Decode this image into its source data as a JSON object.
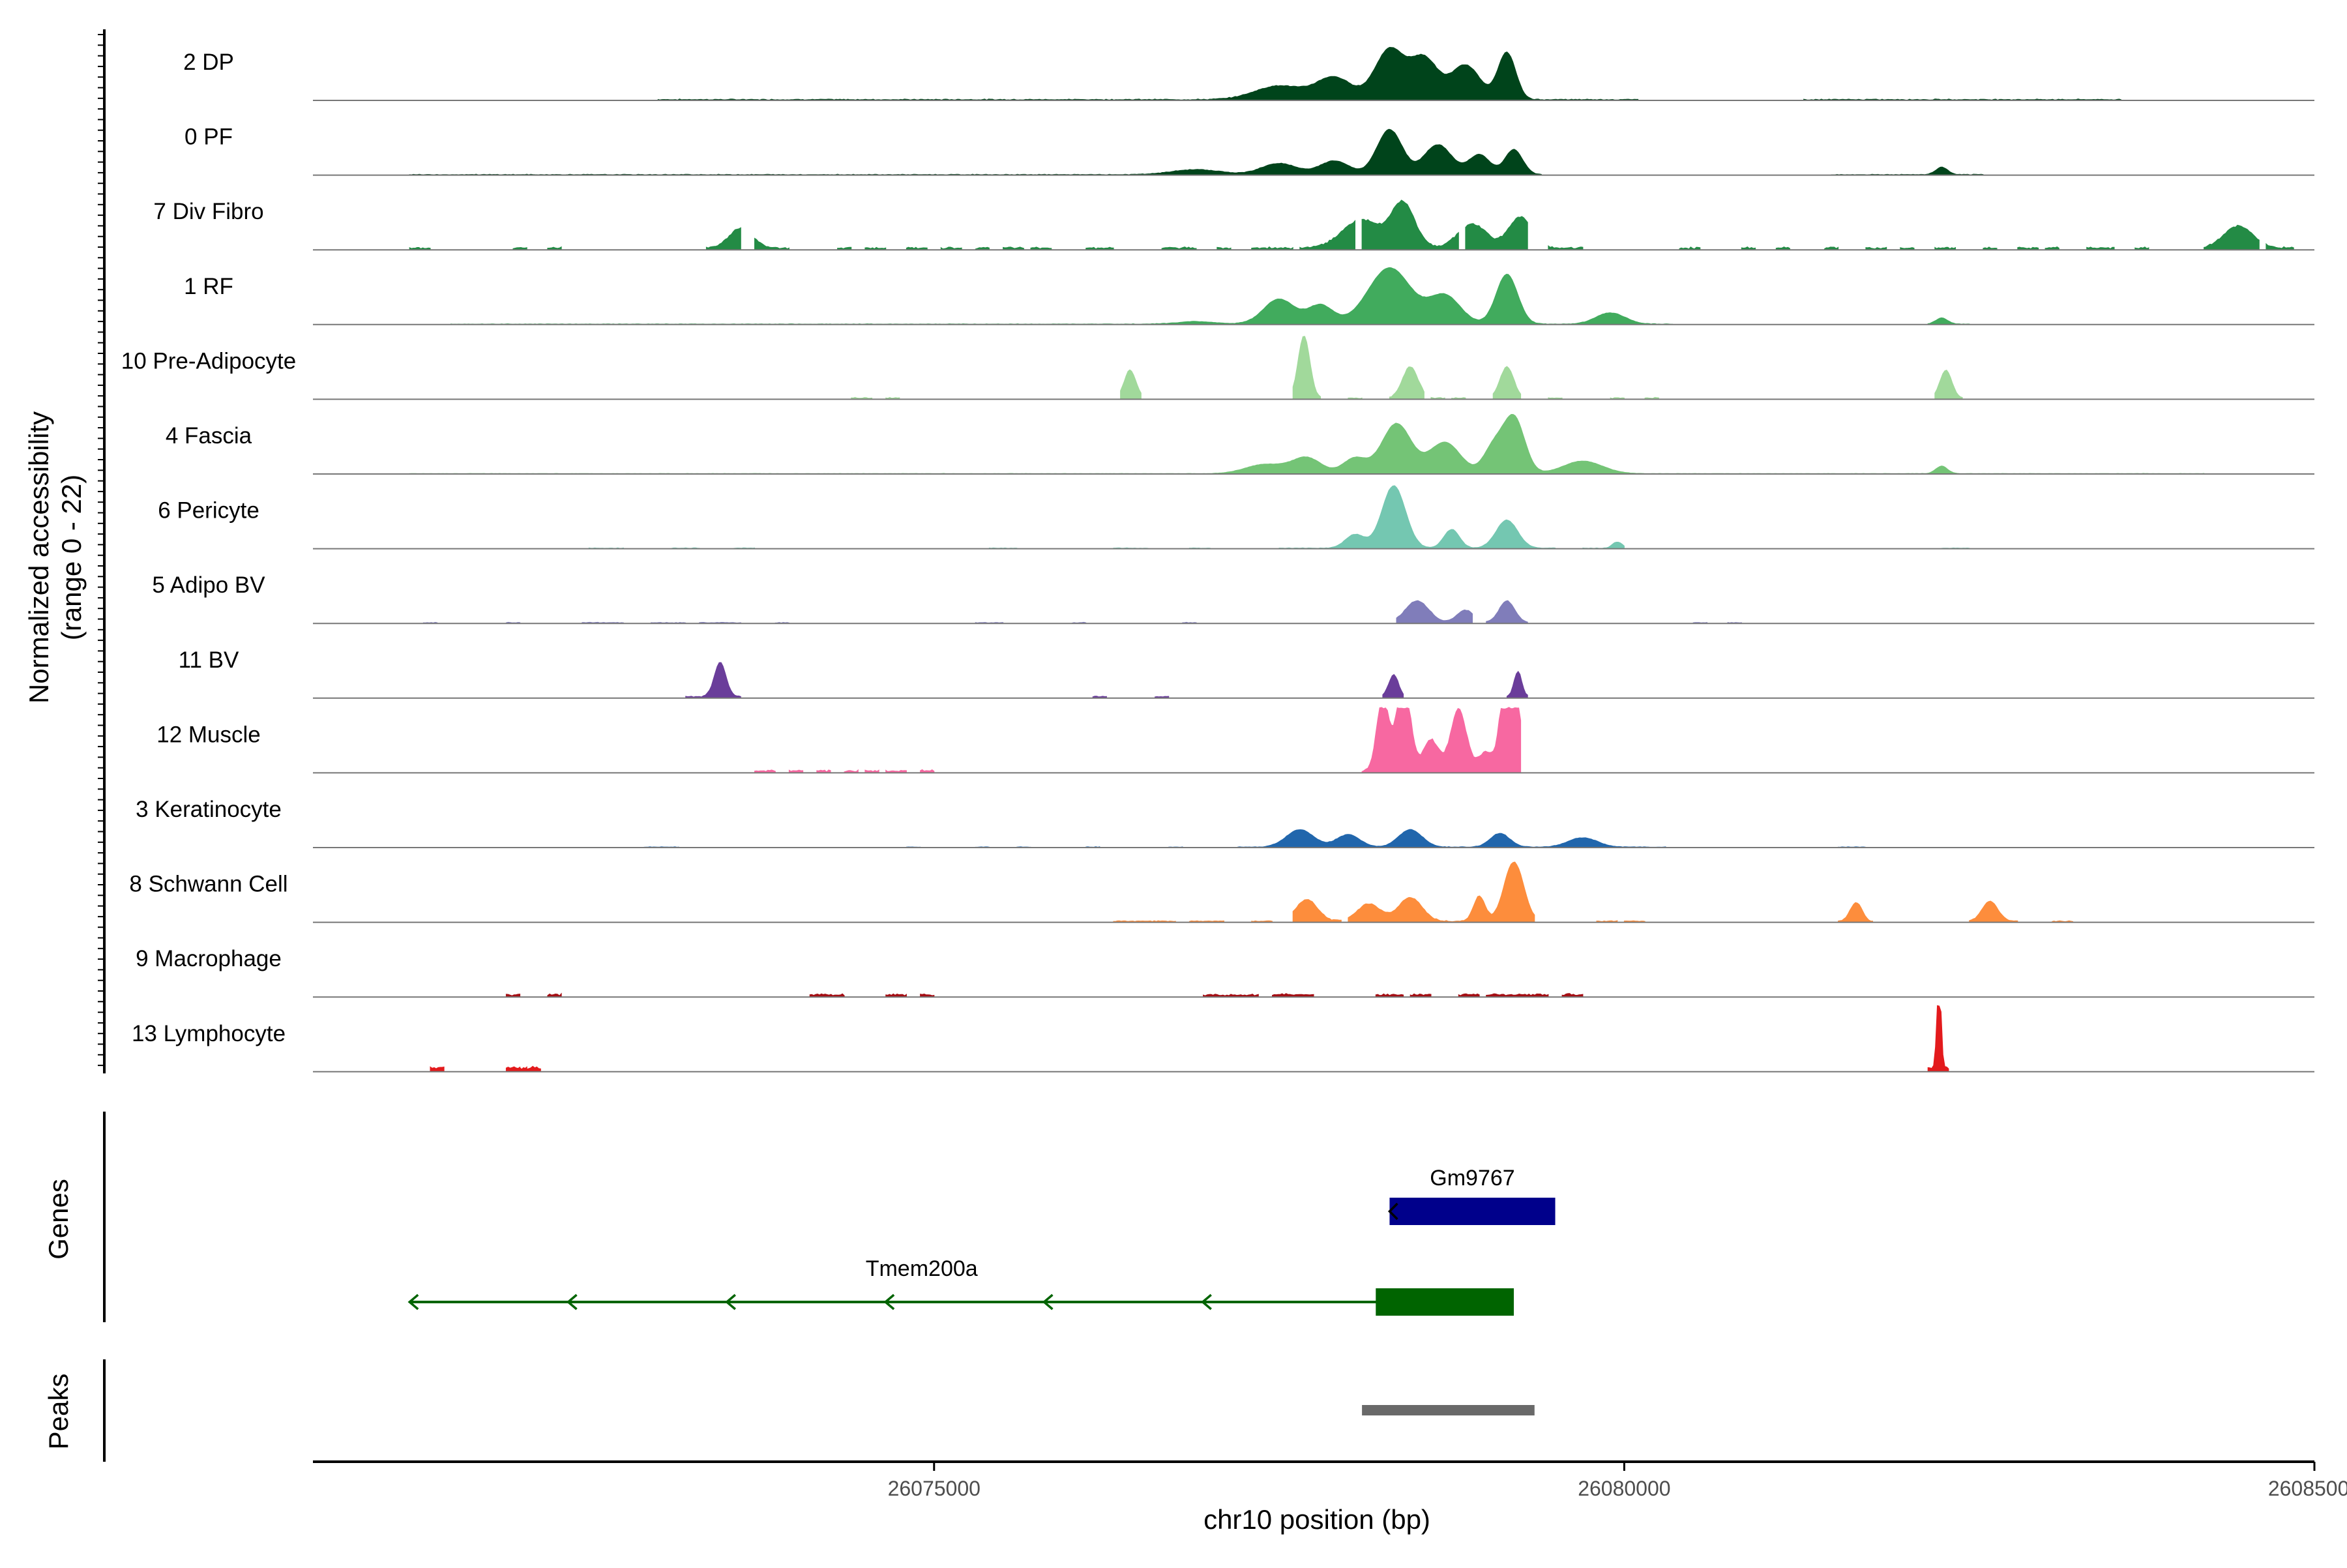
{
  "chart_data": {
    "type": "area",
    "title": "",
    "xlabel": "chr10 position (bp)",
    "ylabel_line1": "Normalized accessibility",
    "ylabel_line2": "(range 0 - 22)",
    "y_range": [
      0,
      22
    ],
    "xlim": [
      26070500,
      26085000
    ],
    "x_ticks": [
      {
        "value": 26075000,
        "label": "26075000"
      },
      {
        "value": 26080000,
        "label": "26080000"
      },
      {
        "value": 26085000,
        "label": "26085000"
      }
    ],
    "tracks": [
      {
        "name": "2 DP",
        "color": "#00441b",
        "segments": [
          [
            26073000,
            26080100
          ],
          [
            26081300,
            26083600
          ]
        ],
        "baseline": 0.9,
        "noise": 0.5,
        "peaks": [
          [
            26077500,
            0.22,
            250
          ],
          [
            26077900,
            0.35,
            180
          ],
          [
            26078300,
            0.8,
            150
          ],
          [
            26078550,
            0.65,
            140
          ],
          [
            26078850,
            0.55,
            150
          ],
          [
            26079150,
            0.75,
            90
          ]
        ]
      },
      {
        "name": "0 PF",
        "color": "#00441b",
        "segments": [
          [
            26071200,
            26079400
          ],
          [
            26081500,
            26082600
          ]
        ],
        "baseline": 0.5,
        "noise": 0.4,
        "peaks": [
          [
            26076900,
            0.08,
            250
          ],
          [
            26077500,
            0.18,
            180
          ],
          [
            26077900,
            0.22,
            150
          ],
          [
            26078300,
            0.72,
            130
          ],
          [
            26078650,
            0.48,
            140
          ],
          [
            26078950,
            0.32,
            110
          ],
          [
            26079200,
            0.4,
            90
          ],
          [
            26082300,
            0.12,
            60
          ]
        ]
      },
      {
        "name": "7 Div Fibro",
        "color": "#238b45",
        "segments": [
          [
            26071200,
            26071350
          ],
          [
            26071950,
            26072050
          ],
          [
            26072200,
            26072300
          ],
          [
            26073350,
            26073600
          ],
          [
            26073700,
            26073950
          ],
          [
            26074300,
            26074400
          ],
          [
            26074500,
            26074650
          ],
          [
            26074800,
            26074950
          ],
          [
            26075050,
            26075200
          ],
          [
            26075300,
            26075400
          ],
          [
            26075500,
            26075650
          ],
          [
            26075700,
            26075850
          ],
          [
            26076100,
            26076300
          ],
          [
            26076650,
            26076900
          ],
          [
            26077050,
            26077150
          ],
          [
            26077300,
            26077600
          ],
          [
            26077650,
            26078050
          ],
          [
            26078100,
            26078800
          ],
          [
            26078850,
            26079300
          ],
          [
            26079450,
            26079700
          ],
          [
            26080400,
            26080550
          ],
          [
            26080850,
            26080950
          ],
          [
            26081100,
            26081200
          ],
          [
            26081450,
            26081550
          ],
          [
            26081750,
            26081900
          ],
          [
            26082000,
            26082100
          ],
          [
            26082250,
            26082400
          ],
          [
            26082600,
            26082700
          ],
          [
            26082850,
            26083000
          ],
          [
            26083050,
            26083150
          ],
          [
            26083350,
            26083550
          ],
          [
            26083700,
            26083800
          ],
          [
            26084200,
            26084600
          ],
          [
            26084650,
            26084850
          ]
        ],
        "baseline": 2.0,
        "noise": 1.0,
        "peaks": [
          [
            26078100,
            0.45,
            200
          ],
          [
            26078400,
            0.7,
            120
          ],
          [
            26078900,
            0.38,
            150
          ],
          [
            26079250,
            0.5,
            120
          ],
          [
            26084450,
            0.35,
            150
          ],
          [
            26073600,
            0.32,
            120
          ]
        ]
      },
      {
        "name": "1 RF",
        "color": "#41ab5d",
        "segments": [
          [
            26071500,
            26080350
          ],
          [
            26082200,
            26082500
          ]
        ],
        "baseline": 0.5,
        "noise": 0.3,
        "peaks": [
          [
            26076900,
            0.04,
            200
          ],
          [
            26077500,
            0.4,
            160
          ],
          [
            26077800,
            0.3,
            130
          ],
          [
            26078300,
            0.9,
            220
          ],
          [
            26078700,
            0.45,
            160
          ],
          [
            26079150,
            0.8,
            110
          ],
          [
            26079900,
            0.18,
            150
          ],
          [
            26082300,
            0.1,
            60
          ]
        ]
      },
      {
        "name": "10 Pre-Adipocyte",
        "color": "#a1d99b",
        "segments": [
          [
            26074400,
            26074550
          ],
          [
            26074650,
            26074750
          ],
          [
            26076350,
            26076500
          ],
          [
            26077600,
            26077800
          ],
          [
            26078000,
            26078100
          ],
          [
            26078300,
            26078550
          ],
          [
            26078600,
            26078700
          ],
          [
            26078750,
            26078850
          ],
          [
            26079050,
            26079250
          ],
          [
            26079450,
            26079550
          ],
          [
            26079900,
            26080000
          ],
          [
            26080150,
            26080250
          ],
          [
            26082250,
            26082450
          ]
        ],
        "baseline": 1.5,
        "noise": 0.6,
        "peaks": [
          [
            26077680,
            1.0,
            60
          ],
          [
            26078450,
            0.5,
            80
          ],
          [
            26079150,
            0.5,
            70
          ],
          [
            26082330,
            0.45,
            60
          ],
          [
            26076420,
            0.45,
            60
          ]
        ]
      },
      {
        "name": "4 Fascia",
        "color": "#74c476",
        "segments": [
          [
            26071200,
            26084200
          ]
        ],
        "baseline": 0.35,
        "noise": 0.25,
        "peaks": [
          [
            26077400,
            0.15,
            200
          ],
          [
            26077700,
            0.25,
            150
          ],
          [
            26078050,
            0.25,
            120
          ],
          [
            26078350,
            0.8,
            150
          ],
          [
            26078700,
            0.5,
            160
          ],
          [
            26079050,
            0.4,
            100
          ],
          [
            26079200,
            0.9,
            110
          ],
          [
            26079700,
            0.2,
            200
          ],
          [
            26082300,
            0.12,
            60
          ]
        ]
      },
      {
        "name": "6 Pericyte",
        "color": "#74c7b1",
        "segments": [
          [
            26072500,
            26072750
          ],
          [
            26073100,
            26073300
          ],
          [
            26073550,
            26073700
          ],
          [
            26075400,
            26075600
          ],
          [
            26076300,
            26076550
          ],
          [
            26076850,
            26077000
          ],
          [
            26077500,
            26079500
          ],
          [
            26079700,
            26080000
          ],
          [
            26082300,
            26082500
          ]
        ],
        "baseline": 0.6,
        "noise": 0.3,
        "peaks": [
          [
            26078050,
            0.22,
            100
          ],
          [
            26078330,
            1.0,
            120
          ],
          [
            26078750,
            0.3,
            80
          ],
          [
            26079150,
            0.45,
            110
          ],
          [
            26079950,
            0.1,
            50
          ]
        ]
      },
      {
        "name": "5 Adipo BV",
        "color": "#807dba",
        "segments": [
          [
            26071300,
            26071400
          ],
          [
            26071900,
            26072000
          ],
          [
            26072450,
            26072750
          ],
          [
            26072950,
            26073200
          ],
          [
            26073300,
            26073600
          ],
          [
            26073850,
            26073950
          ],
          [
            26075300,
            26075500
          ],
          [
            26076000,
            26076100
          ],
          [
            26076800,
            26076900
          ],
          [
            26078350,
            26078900
          ],
          [
            26079000,
            26079300
          ],
          [
            26080500,
            26080600
          ],
          [
            26080750,
            26080850
          ]
        ],
        "baseline": 0.8,
        "noise": 0.4,
        "peaks": [
          [
            26078500,
            0.35,
            120
          ],
          [
            26078850,
            0.2,
            90
          ],
          [
            26079150,
            0.35,
            80
          ]
        ]
      },
      {
        "name": "11 BV",
        "color": "#6a3d9a",
        "segments": [
          [
            26073200,
            26073600
          ],
          [
            26076150,
            26076250
          ],
          [
            26076600,
            26076700
          ],
          [
            26078250,
            26078400
          ],
          [
            26079150,
            26079300
          ]
        ],
        "baseline": 2.0,
        "noise": 0.4,
        "peaks": [
          [
            26073450,
            0.55,
            60
          ],
          [
            26078330,
            0.35,
            50
          ],
          [
            26079230,
            0.4,
            40
          ]
        ]
      },
      {
        "name": "12 Muscle",
        "color": "#f768a1",
        "segments": [
          [
            26073700,
            26073850
          ],
          [
            26073950,
            26074050
          ],
          [
            26074150,
            26074250
          ],
          [
            26074350,
            26074450
          ],
          [
            26074500,
            26074600
          ],
          [
            26074650,
            26074800
          ],
          [
            26074900,
            26075000
          ],
          [
            26078100,
            26079250
          ]
        ],
        "baseline": 2.0,
        "noise": 1.2,
        "peaks": [
          [
            26078250,
            1.2,
            60
          ],
          [
            26078400,
            1.5,
            70
          ],
          [
            26078600,
            0.5,
            80
          ],
          [
            26078800,
            1.0,
            80
          ],
          [
            26079000,
            0.3,
            80
          ],
          [
            26079150,
            1.8,
            60
          ],
          [
            26079220,
            1.2,
            40
          ]
        ]
      },
      {
        "name": "3 Keratinocyte",
        "color": "#2166ac",
        "segments": [
          [
            26072900,
            26073150
          ],
          [
            26074800,
            26074900
          ],
          [
            26075300,
            26075400
          ],
          [
            26075600,
            26075700
          ],
          [
            26076100,
            26076200
          ],
          [
            26076700,
            26076800
          ],
          [
            26077200,
            26080300
          ],
          [
            26081550,
            26081750
          ]
        ],
        "baseline": 0.5,
        "noise": 0.35,
        "peaks": [
          [
            26077650,
            0.28,
            140
          ],
          [
            26078000,
            0.2,
            120
          ],
          [
            26078450,
            0.28,
            120
          ],
          [
            26079100,
            0.22,
            100
          ],
          [
            26079700,
            0.15,
            150
          ]
        ]
      },
      {
        "name": "8 Schwann Cell",
        "color": "#fd8d3c",
        "segments": [
          [
            26076300,
            26076750
          ],
          [
            26076850,
            26077100
          ],
          [
            26077300,
            26077450
          ],
          [
            26077600,
            26077950
          ],
          [
            26078000,
            26079350
          ],
          [
            26079800,
            26079950
          ],
          [
            26080000,
            26080150
          ],
          [
            26081550,
            26081800
          ],
          [
            26082500,
            26082850
          ],
          [
            26083100,
            26083250
          ]
        ],
        "baseline": 1.2,
        "noise": 0.6,
        "peaks": [
          [
            26077700,
            0.35,
            110
          ],
          [
            26078150,
            0.28,
            120
          ],
          [
            26078450,
            0.38,
            120
          ],
          [
            26078950,
            0.4,
            60
          ],
          [
            26079200,
            0.95,
            100
          ],
          [
            26081680,
            0.3,
            60
          ],
          [
            26082650,
            0.32,
            80
          ]
        ]
      },
      {
        "name": "9 Macrophage",
        "color": "#a50f15",
        "segments": [
          [
            26071900,
            26072000
          ],
          [
            26072200,
            26072300
          ],
          [
            26074100,
            26074350
          ],
          [
            26074650,
            26074800
          ],
          [
            26074900,
            26075000
          ],
          [
            26076950,
            26077350
          ],
          [
            26077450,
            26077750
          ],
          [
            26078200,
            26078400
          ],
          [
            26078450,
            26078600
          ],
          [
            26078800,
            26078950
          ],
          [
            26079000,
            26079450
          ],
          [
            26079550,
            26079700
          ]
        ],
        "baseline": 2.8,
        "noise": 0.8,
        "peaks": []
      },
      {
        "name": "13 Lymphocyte",
        "color": "#e31a1c",
        "segments": [
          [
            26071350,
            26071450
          ],
          [
            26071900,
            26072000
          ],
          [
            26072000,
            26072050
          ],
          [
            26072050,
            26072150
          ],
          [
            26082200,
            26082350
          ]
        ],
        "baseline": 5.5,
        "noise": 0.8,
        "peaks": [
          [
            26082280,
            1.6,
            20
          ]
        ]
      }
    ],
    "genes": [
      {
        "name": "Gm9767",
        "strand": "-",
        "start": 26078300,
        "end": 26079500,
        "color": "#00008b",
        "exons": [
          [
            26078300,
            26079500
          ]
        ]
      },
      {
        "name": "Tmem200a",
        "strand": "-",
        "start": 26071200,
        "end": 26079200,
        "color": "#006400",
        "exons": [
          [
            26078200,
            26079200
          ]
        ]
      }
    ],
    "peaks_track": [
      {
        "start": 26078100,
        "end": 26079350,
        "color": "#696969"
      }
    ],
    "panel_labels": {
      "genes": "Genes",
      "peaks": "Peaks"
    }
  }
}
